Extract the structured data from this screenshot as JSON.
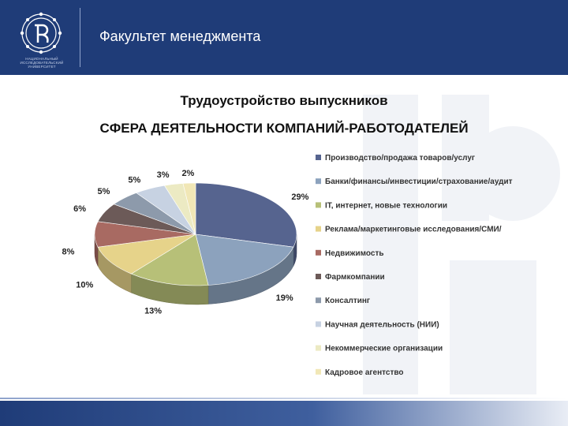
{
  "header": {
    "title": "Факультет менеджмента",
    "logo_text": "НАЦИОНАЛЬНЫЙ ИССЛЕДОВАТЕЛЬСКИЙ УНИВЕРСИТЕТ",
    "color": "#1f3c78"
  },
  "slide": {
    "title": "Трудоустройство выпускников",
    "subtitle": "СФЕРА ДЕЯТЕЛЬНОСТИ КОМПАНИЙ-РАБОТОДАТЕЛЕЙ"
  },
  "chart_data": {
    "type": "pie",
    "style": "3d",
    "legend_position": "right",
    "slices": [
      {
        "name": "Производство/продажа товаров/услуг",
        "value": 29,
        "label": "29%",
        "color": "#56648f"
      },
      {
        "name": "Банки/финансы/инвестиции/страхование/аудит",
        "value": 19,
        "label": "19%",
        "color": "#8ca2bd"
      },
      {
        "name": "IT, интернет, новые технологии",
        "value": 13,
        "label": "13%",
        "color": "#b7c078"
      },
      {
        "name": "Реклама/маркетинговые исследования/СМИ/",
        "value": 10,
        "label": "10%",
        "color": "#e6d38a"
      },
      {
        "name": "Недвижимость",
        "value": 8,
        "label": "8%",
        "color": "#a86a62"
      },
      {
        "name": "Фармкомпании",
        "value": 6,
        "label": "6%",
        "color": "#6c5a58"
      },
      {
        "name": "Консалтинг",
        "value": 5,
        "label": "5%",
        "color": "#8d9aab"
      },
      {
        "name": "Научная деятельность (НИИ)",
        "value": 5,
        "label": "5%",
        "color": "#c7d2e2"
      },
      {
        "name": "Некоммерческие организации",
        "value": 3,
        "label": "3%",
        "color": "#eceac3"
      },
      {
        "name": "Кадровое агентство",
        "value": 2,
        "label": "2%",
        "color": "#f1e7b6"
      }
    ]
  }
}
